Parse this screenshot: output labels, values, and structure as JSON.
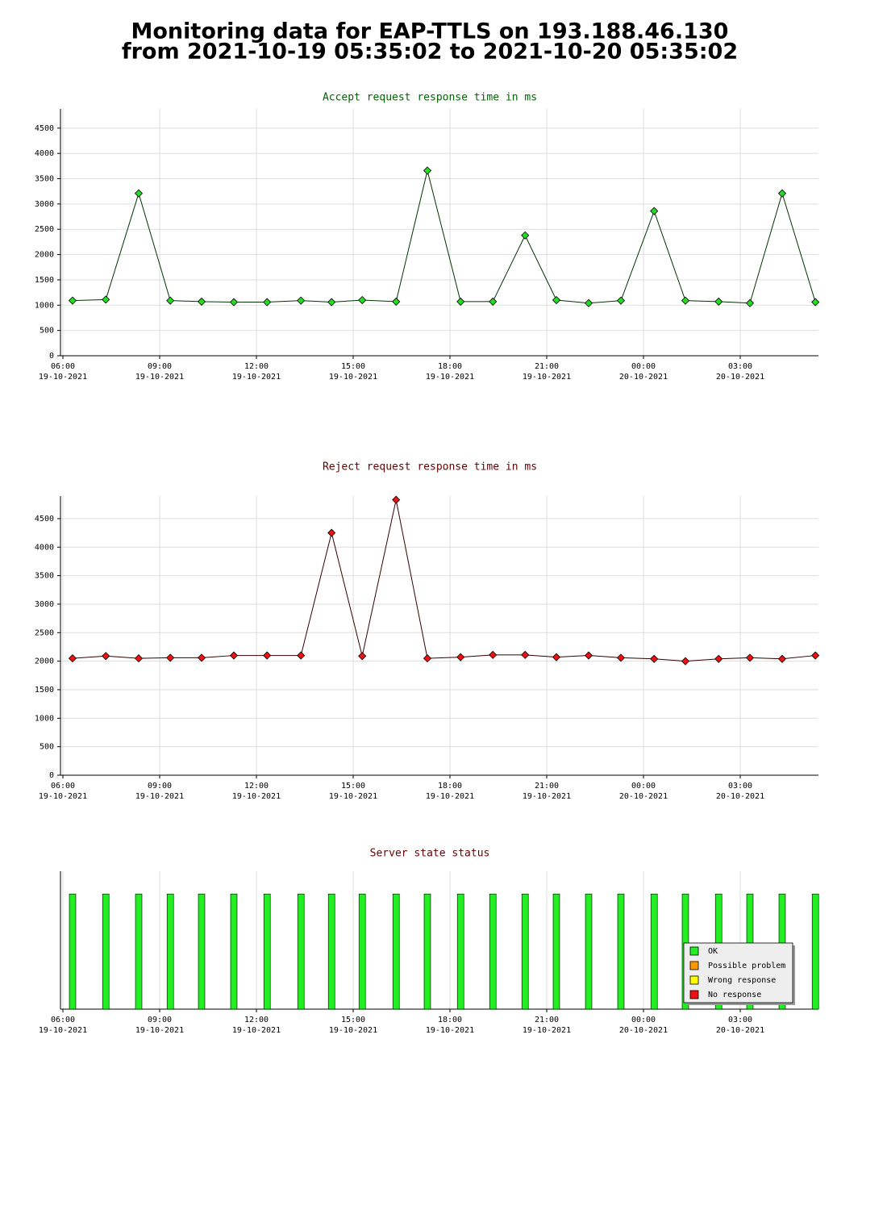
{
  "title": [
    "Monitoring data for EAP-TTLS on 193.188.46.130",
    "from 2021-10-19 05:35:02 to 2021-10-20 05:35:02"
  ],
  "chart_data": [
    {
      "type": "line",
      "title": "Accept request response time in ms",
      "title_color": "#006400",
      "line_color": "#003300",
      "marker_color": "#22dd22",
      "x": [
        6.3,
        7.33,
        8.35,
        9.33,
        10.3,
        11.3,
        12.33,
        13.38,
        14.33,
        15.28,
        16.33,
        17.3,
        18.33,
        19.33,
        20.33,
        21.3,
        22.3,
        23.3,
        24.33,
        25.3,
        26.33,
        27.3,
        28.3,
        29.33
      ],
      "values": [
        1090,
        1110,
        3210,
        1090,
        1070,
        1060,
        1060,
        1090,
        1060,
        1100,
        1070,
        3660,
        1070,
        1070,
        2380,
        1100,
        1040,
        1090,
        2860,
        1090,
        1070,
        1040,
        3210,
        1060
      ],
      "xlim": [
        5.925,
        29.425
      ],
      "xticks": [
        {
          "value": 6,
          "label": "06:00",
          "sublabel": "19-10-2021"
        },
        {
          "value": 9,
          "label": "09:00",
          "sublabel": "19-10-2021"
        },
        {
          "value": 12,
          "label": "12:00",
          "sublabel": "19-10-2021"
        },
        {
          "value": 15,
          "label": "15:00",
          "sublabel": "19-10-2021"
        },
        {
          "value": 18,
          "label": "18:00",
          "sublabel": "19-10-2021"
        },
        {
          "value": 21,
          "label": "21:00",
          "sublabel": "19-10-2021"
        },
        {
          "value": 24,
          "label": "00:00",
          "sublabel": "20-10-2021"
        },
        {
          "value": 27,
          "label": "03:00",
          "sublabel": "20-10-2021"
        }
      ],
      "ylim": [
        0,
        4880
      ],
      "yticks": [
        0,
        500,
        1000,
        1500,
        2000,
        2500,
        3000,
        3500,
        4000,
        4500
      ],
      "grid": true
    },
    {
      "type": "line",
      "title": "Reject request response time in ms",
      "title_color": "#660000",
      "line_color": "#330000",
      "marker_color": "#ee1111",
      "x": [
        6.3,
        7.33,
        8.35,
        9.33,
        10.3,
        11.3,
        12.33,
        13.38,
        14.33,
        15.28,
        16.33,
        17.3,
        18.33,
        19.33,
        20.33,
        21.3,
        22.3,
        23.3,
        24.33,
        25.3,
        26.33,
        27.3,
        28.3,
        29.33
      ],
      "values": [
        2050,
        2090,
        2050,
        2060,
        2060,
        2100,
        2100,
        2100,
        4250,
        2090,
        4830,
        2050,
        2070,
        2110,
        2110,
        2070,
        2100,
        2060,
        2040,
        2000,
        2040,
        2060,
        2040,
        2100
      ],
      "xlim": [
        5.925,
        29.425
      ],
      "xticks": [
        {
          "value": 6,
          "label": "06:00",
          "sublabel": "19-10-2021"
        },
        {
          "value": 9,
          "label": "09:00",
          "sublabel": "19-10-2021"
        },
        {
          "value": 12,
          "label": "12:00",
          "sublabel": "19-10-2021"
        },
        {
          "value": 15,
          "label": "15:00",
          "sublabel": "19-10-2021"
        },
        {
          "value": 18,
          "label": "18:00",
          "sublabel": "19-10-2021"
        },
        {
          "value": 21,
          "label": "21:00",
          "sublabel": "19-10-2021"
        },
        {
          "value": 24,
          "label": "00:00",
          "sublabel": "20-10-2021"
        },
        {
          "value": 27,
          "label": "03:00",
          "sublabel": "20-10-2021"
        }
      ],
      "ylim": [
        0,
        4895
      ],
      "yticks": [
        0,
        500,
        1000,
        1500,
        2000,
        2500,
        3000,
        3500,
        4000,
        4500
      ],
      "grid": true
    },
    {
      "type": "status",
      "title": "Server state status",
      "title_color": "#660000",
      "x": [
        6.3,
        7.33,
        8.35,
        9.33,
        10.3,
        11.3,
        12.33,
        13.38,
        14.33,
        15.28,
        16.33,
        17.3,
        18.33,
        19.33,
        20.33,
        21.3,
        22.3,
        23.3,
        24.33,
        25.3,
        26.33,
        27.3,
        28.3,
        29.33
      ],
      "states": [
        "OK",
        "OK",
        "OK",
        "OK",
        "OK",
        "OK",
        "OK",
        "OK",
        "OK",
        "OK",
        "OK",
        "OK",
        "OK",
        "OK",
        "OK",
        "OK",
        "OK",
        "OK",
        "OK",
        "OK",
        "OK",
        "OK",
        "OK",
        "OK"
      ],
      "legend": [
        {
          "name": "OK",
          "color": "#22ee22"
        },
        {
          "name": "Possible problem",
          "color": "#ff9900"
        },
        {
          "name": "Wrong response",
          "color": "#ffff00"
        },
        {
          "name": "No response",
          "color": "#ee1111"
        }
      ],
      "legend_position": "lower right",
      "xlim": [
        5.925,
        29.425
      ],
      "xticks": [
        {
          "value": 6,
          "label": "06:00",
          "sublabel": "19-10-2021"
        },
        {
          "value": 9,
          "label": "09:00",
          "sublabel": "19-10-2021"
        },
        {
          "value": 12,
          "label": "12:00",
          "sublabel": "19-10-2021"
        },
        {
          "value": 15,
          "label": "15:00",
          "sublabel": "19-10-2021"
        },
        {
          "value": 18,
          "label": "18:00",
          "sublabel": "19-10-2021"
        },
        {
          "value": 21,
          "label": "21:00",
          "sublabel": "19-10-2021"
        },
        {
          "value": 24,
          "label": "00:00",
          "sublabel": "20-10-2021"
        },
        {
          "value": 27,
          "label": "03:00",
          "sublabel": "20-10-2021"
        }
      ],
      "grid": true
    }
  ]
}
